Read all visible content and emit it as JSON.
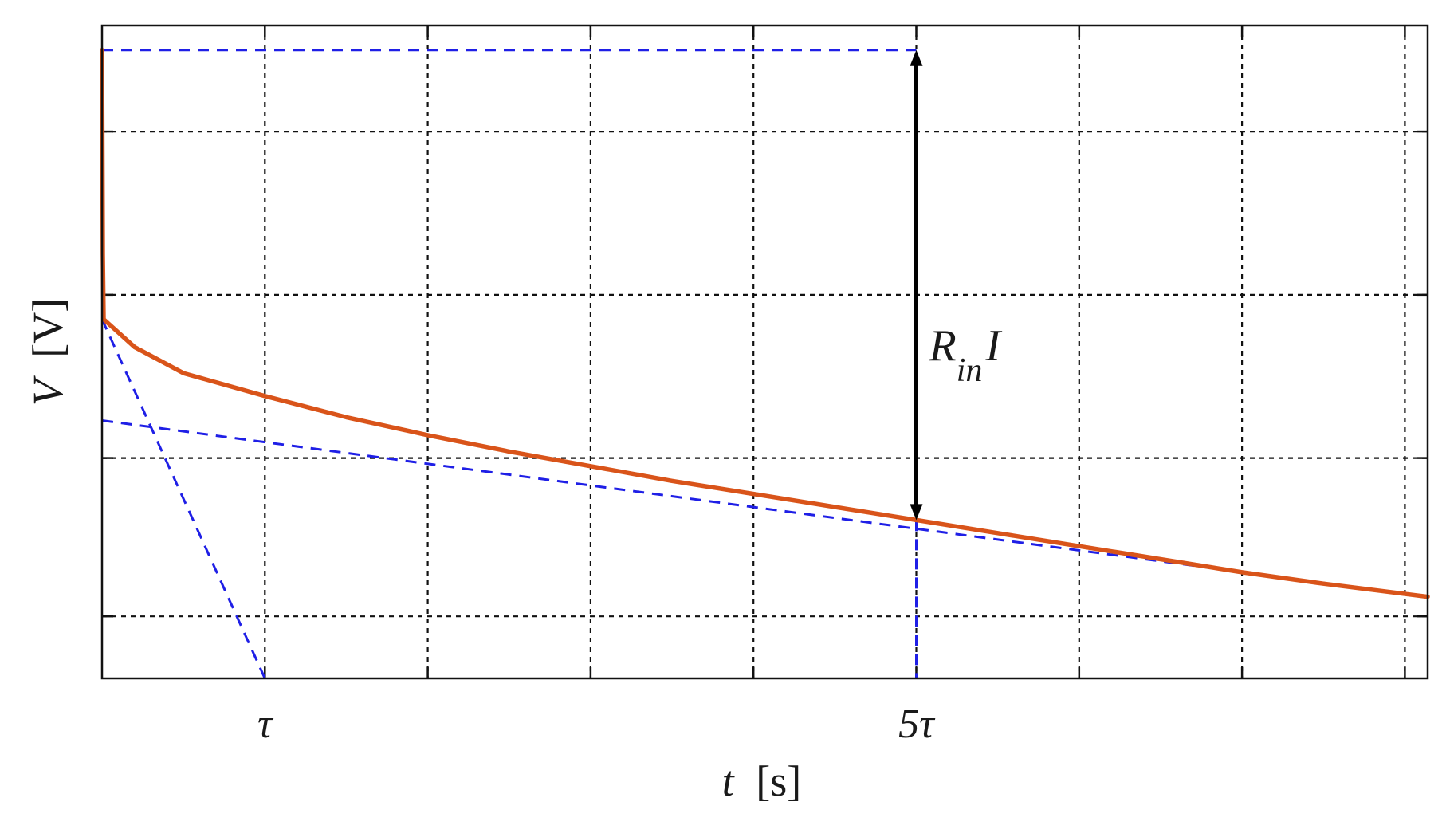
{
  "chart_data": {
    "type": "line",
    "title": "",
    "xlabel": {
      "var": "t",
      "unit": "[s]"
    },
    "ylabel": {
      "var": "V",
      "unit": "[V]"
    },
    "xlim": [
      0,
      8.14
    ],
    "ylim": [
      0,
      4.0
    ],
    "grid": true,
    "x_gridlines": [
      1,
      2,
      3,
      4,
      5,
      6,
      7,
      8
    ],
    "y_gridlines": [
      0.38,
      1.35,
      2.35,
      3.35
    ],
    "x_tick_labels": [
      {
        "x": 1,
        "label": "τ"
      },
      {
        "x": 5,
        "label": "5τ"
      }
    ],
    "colors": {
      "measured": "#d9541a",
      "construction": "#1f1fe6",
      "grid": "#111111",
      "arrow": "#000000"
    },
    "series": [
      {
        "role": "measured",
        "x": [
          0,
          0.005,
          0.01,
          0.2,
          0.5,
          1.0,
          1.5,
          2.0,
          2.5,
          3.0,
          3.5,
          4.0,
          4.5,
          5.0,
          5.5,
          6.0,
          6.5,
          7.0,
          7.5,
          8.14
        ],
        "y": [
          3.85,
          2.6,
          2.2,
          2.03,
          1.87,
          1.73,
          1.6,
          1.49,
          1.39,
          1.3,
          1.21,
          1.13,
          1.05,
          0.97,
          0.89,
          0.81,
          0.73,
          0.65,
          0.58,
          0.5
        ]
      },
      {
        "role": "initial-tangent",
        "x": [
          0,
          1
        ],
        "y": [
          2.2,
          0
        ]
      },
      {
        "role": "asymptote-line",
        "x": [
          0,
          8.14
        ],
        "y": [
          1.58,
          0.5
        ]
      },
      {
        "role": "top-reference",
        "x": [
          0,
          5
        ],
        "y": [
          3.85,
          3.85
        ]
      },
      {
        "role": "drop-5tau",
        "x": [
          5,
          5
        ],
        "y": [
          0.97,
          0
        ]
      }
    ],
    "annotations": [
      {
        "label": "R",
        "subscript": "in",
        "suffix": "I",
        "x": 5,
        "y_top": 3.85,
        "y_bottom": 0.97
      }
    ]
  }
}
